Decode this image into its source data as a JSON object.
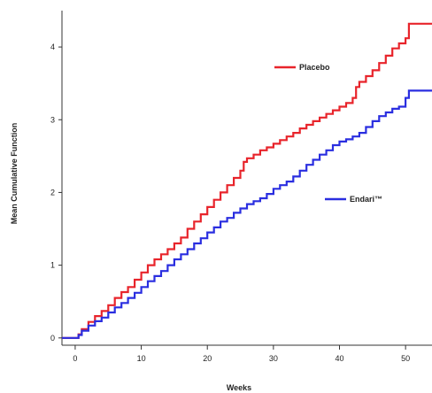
{
  "chart_data": {
    "type": "line",
    "title": "",
    "xlabel": "Weeks",
    "ylabel": "Mean Cumulative Function",
    "xlim": [
      -2,
      54
    ],
    "ylim": [
      -0.1,
      4.5
    ],
    "xticks": [
      0,
      10,
      20,
      30,
      40,
      50
    ],
    "yticks": [
      0,
      1,
      2,
      3,
      4
    ],
    "grid": false,
    "legend": "inline-annotations",
    "series": [
      {
        "name": "Placebo",
        "color": "#e8242b",
        "step": true,
        "points": [
          [
            -2,
            0
          ],
          [
            0,
            0
          ],
          [
            0.5,
            0.05
          ],
          [
            1,
            0.12
          ],
          [
            2,
            0.22
          ],
          [
            3,
            0.3
          ],
          [
            4,
            0.37
          ],
          [
            5,
            0.45
          ],
          [
            6,
            0.55
          ],
          [
            7,
            0.63
          ],
          [
            8,
            0.7
          ],
          [
            9,
            0.8
          ],
          [
            10,
            0.9
          ],
          [
            11,
            1.0
          ],
          [
            12,
            1.08
          ],
          [
            13,
            1.15
          ],
          [
            14,
            1.22
          ],
          [
            15,
            1.3
          ],
          [
            16,
            1.38
          ],
          [
            17,
            1.5
          ],
          [
            18,
            1.6
          ],
          [
            19,
            1.7
          ],
          [
            20,
            1.8
          ],
          [
            21,
            1.9
          ],
          [
            22,
            2.0
          ],
          [
            23,
            2.1
          ],
          [
            24,
            2.2
          ],
          [
            25,
            2.3
          ],
          [
            25.5,
            2.42
          ],
          [
            26,
            2.47
          ],
          [
            27,
            2.52
          ],
          [
            28,
            2.58
          ],
          [
            29,
            2.62
          ],
          [
            30,
            2.67
          ],
          [
            31,
            2.72
          ],
          [
            32,
            2.77
          ],
          [
            33,
            2.82
          ],
          [
            34,
            2.88
          ],
          [
            35,
            2.93
          ],
          [
            36,
            2.98
          ],
          [
            37,
            3.03
          ],
          [
            38,
            3.08
          ],
          [
            39,
            3.13
          ],
          [
            40,
            3.18
          ],
          [
            41,
            3.23
          ],
          [
            42,
            3.3
          ],
          [
            42.5,
            3.45
          ],
          [
            43,
            3.52
          ],
          [
            44,
            3.6
          ],
          [
            45,
            3.68
          ],
          [
            46,
            3.78
          ],
          [
            47,
            3.88
          ],
          [
            48,
            3.98
          ],
          [
            49,
            4.05
          ],
          [
            50,
            4.12
          ],
          [
            50.5,
            4.32
          ],
          [
            52,
            4.32
          ],
          [
            54,
            4.32
          ]
        ]
      },
      {
        "name": "Endari™",
        "color": "#2a2ee0",
        "step": true,
        "points": [
          [
            -2,
            0
          ],
          [
            0,
            0
          ],
          [
            0.5,
            0.04
          ],
          [
            1,
            0.1
          ],
          [
            2,
            0.17
          ],
          [
            3,
            0.23
          ],
          [
            4,
            0.28
          ],
          [
            5,
            0.35
          ],
          [
            6,
            0.42
          ],
          [
            7,
            0.48
          ],
          [
            8,
            0.55
          ],
          [
            9,
            0.62
          ],
          [
            10,
            0.7
          ],
          [
            11,
            0.78
          ],
          [
            12,
            0.85
          ],
          [
            13,
            0.92
          ],
          [
            14,
            1.0
          ],
          [
            15,
            1.08
          ],
          [
            16,
            1.15
          ],
          [
            17,
            1.22
          ],
          [
            18,
            1.3
          ],
          [
            19,
            1.37
          ],
          [
            20,
            1.45
          ],
          [
            21,
            1.52
          ],
          [
            22,
            1.6
          ],
          [
            23,
            1.65
          ],
          [
            24,
            1.72
          ],
          [
            25,
            1.78
          ],
          [
            26,
            1.84
          ],
          [
            27,
            1.88
          ],
          [
            28,
            1.92
          ],
          [
            29,
            1.98
          ],
          [
            30,
            2.05
          ],
          [
            31,
            2.1
          ],
          [
            32,
            2.15
          ],
          [
            33,
            2.22
          ],
          [
            34,
            2.3
          ],
          [
            35,
            2.38
          ],
          [
            36,
            2.45
          ],
          [
            37,
            2.52
          ],
          [
            38,
            2.58
          ],
          [
            39,
            2.65
          ],
          [
            40,
            2.7
          ],
          [
            41,
            2.73
          ],
          [
            42,
            2.77
          ],
          [
            43,
            2.82
          ],
          [
            44,
            2.9
          ],
          [
            45,
            2.98
          ],
          [
            46,
            3.05
          ],
          [
            47,
            3.1
          ],
          [
            48,
            3.15
          ],
          [
            49,
            3.18
          ],
          [
            50,
            3.3
          ],
          [
            50.5,
            3.4
          ],
          [
            52,
            3.4
          ],
          [
            54,
            3.4
          ]
        ]
      }
    ],
    "annotations": [
      {
        "series": 0,
        "text": "Placebo"
      },
      {
        "series": 1,
        "text": "Endari™"
      }
    ]
  }
}
